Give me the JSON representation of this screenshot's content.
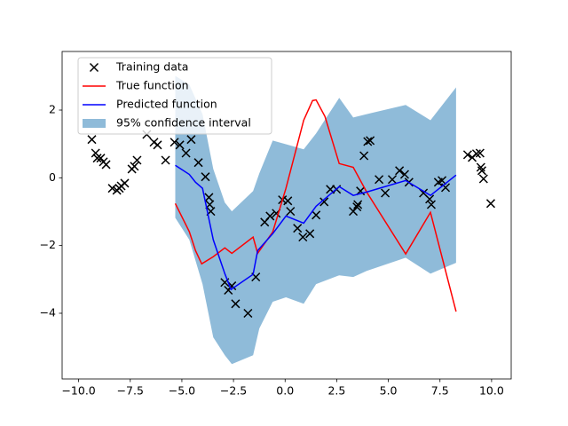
{
  "chart_data": {
    "type": "line",
    "xlim": [
      -10.8,
      10.95
    ],
    "ylim": [
      -5.94,
      3.73
    ],
    "xticks": [
      {
        "value": -10,
        "label": "−10.0"
      },
      {
        "value": -7.5,
        "label": "−7.5"
      },
      {
        "value": -5,
        "label": "−5.0"
      },
      {
        "value": -2.5,
        "label": "−2.5"
      },
      {
        "value": 0,
        "label": "0.0"
      },
      {
        "value": 2.5,
        "label": "2.5"
      },
      {
        "value": 5,
        "label": "5.0"
      },
      {
        "value": 7.5,
        "label": "7.5"
      },
      {
        "value": 10,
        "label": "10.0"
      }
    ],
    "yticks": [
      {
        "value": -4,
        "label": "−4"
      },
      {
        "value": -2,
        "label": "−2"
      },
      0,
      2
    ],
    "legend": "upper left",
    "band": {
      "name": "95% confidence interval",
      "color": "#1f77b4",
      "opacity": 0.5,
      "x": [
        -5.32,
        -4.64,
        -4.0,
        -3.48,
        -2.92,
        -2.58,
        -1.55,
        -1.25,
        -0.6,
        0.04,
        0.9,
        1.5,
        2.62,
        3.3,
        3.95,
        5.84,
        7.04,
        8.28
      ],
      "upper": [
        3.01,
        2.75,
        1.88,
        0.26,
        -0.73,
        -0.99,
        -0.39,
        0.13,
        1.1,
        0.99,
        0.84,
        1.31,
        2.36,
        1.78,
        1.88,
        2.15,
        1.7,
        2.67
      ],
      "lower": [
        -1.18,
        -1.83,
        -3.14,
        -4.71,
        -5.24,
        -5.5,
        -5.24,
        -4.45,
        -3.66,
        -3.53,
        -3.72,
        -3.14,
        -2.88,
        -2.93,
        -2.75,
        -2.36,
        -2.83,
        -2.51
      ]
    },
    "series": [
      {
        "name": "Training data",
        "type": "scatter",
        "color": "#000000",
        "x": [
          -9.36,
          -9.18,
          -9.1,
          -8.93,
          -8.8,
          -8.67,
          -8.37,
          -8.15,
          -8.03,
          -7.94,
          -7.77,
          -7.42,
          -7.3,
          -7.17,
          -6.7,
          -6.35,
          -6.18,
          -5.79,
          -5.36,
          -5.1,
          -4.8,
          -4.55,
          -4.2,
          -3.86,
          -3.69,
          -3.65,
          -3.6,
          -2.92,
          -2.75,
          -2.58,
          -2.4,
          -1.8,
          -1.42,
          -0.99,
          -0.73,
          -0.43,
          -0.13,
          0.13,
          0.26,
          0.6,
          0.86,
          1.2,
          1.5,
          1.89,
          2.19,
          2.49,
          3.3,
          3.48,
          3.52,
          3.65,
          3.82,
          4.0,
          4.12,
          4.55,
          4.85,
          5.19,
          5.54,
          5.79,
          6.0,
          6.7,
          7.0,
          7.08,
          7.42,
          7.6,
          7.77,
          8.84,
          9.06,
          9.27,
          9.44,
          9.48,
          9.53,
          9.61,
          9.96
        ],
        "values": [
          1.13,
          0.73,
          0.58,
          0.58,
          0.47,
          0.39,
          -0.31,
          -0.37,
          -0.31,
          -0.24,
          -0.16,
          0.26,
          0.34,
          0.52,
          1.28,
          1.05,
          0.97,
          0.52,
          1.05,
          0.97,
          0.73,
          1.13,
          0.45,
          0.03,
          -0.58,
          -0.79,
          -0.99,
          -3.09,
          -3.32,
          -3.19,
          -3.72,
          -4.0,
          -2.93,
          -1.31,
          -1.13,
          -1.05,
          -0.65,
          -0.68,
          -0.99,
          -1.49,
          -1.75,
          -1.65,
          -1.1,
          -0.71,
          -0.34,
          -0.34,
          -0.99,
          -0.86,
          -0.79,
          -0.39,
          0.65,
          1.07,
          1.1,
          -0.05,
          -0.45,
          -0.05,
          0.21,
          0.1,
          -0.13,
          -0.45,
          -0.63,
          -0.79,
          -0.13,
          -0.08,
          -0.29,
          0.68,
          0.6,
          0.71,
          0.73,
          0.31,
          0.21,
          -0.03,
          -0.76
        ]
      },
      {
        "name": "True function",
        "type": "line",
        "color": "#ff0000",
        "x": [
          -5.32,
          -4.64,
          -4.34,
          -4.04,
          -3.48,
          -2.92,
          -2.58,
          -1.55,
          -1.33,
          -0.6,
          0.04,
          0.9,
          1.33,
          1.5,
          1.93,
          2.62,
          3.3,
          3.95,
          5.84,
          7.04,
          8.28
        ],
        "values": [
          -0.76,
          -1.59,
          -2.15,
          -2.54,
          -2.33,
          -2.07,
          -2.23,
          -1.75,
          -2.23,
          -1.6,
          -0.31,
          1.7,
          2.28,
          2.3,
          1.81,
          0.42,
          0.31,
          -0.42,
          -2.25,
          -1.02,
          -3.95
        ]
      },
      {
        "name": "Predicted function",
        "type": "line",
        "color": "#0000ff",
        "x": [
          -5.32,
          -4.64,
          -4.34,
          -4.0,
          -3.48,
          -2.92,
          -2.62,
          -1.55,
          -1.33,
          -0.6,
          0.04,
          0.9,
          1.5,
          2.62,
          3.3,
          3.95,
          5.84,
          7.04,
          8.28
        ],
        "values": [
          0.37,
          0.1,
          -0.13,
          -0.31,
          -1.83,
          -2.83,
          -3.3,
          -2.85,
          -2.15,
          -1.65,
          -1.13,
          -1.34,
          -0.84,
          -0.26,
          -0.52,
          -0.42,
          -0.08,
          -0.52,
          0.08
        ]
      }
    ]
  }
}
